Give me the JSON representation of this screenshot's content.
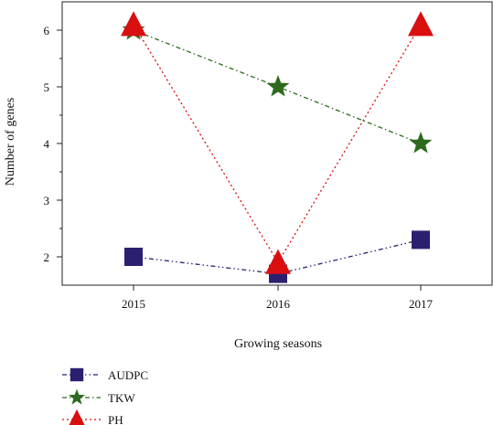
{
  "chart_data": {
    "type": "line",
    "xlabel": "Growing seasons",
    "ylabel": "Number of genes",
    "categories": [
      "2015",
      "2016",
      "2017"
    ],
    "y_ticks": [
      "2",
      "3",
      "4",
      "5",
      "6"
    ],
    "ylim": [
      1.5,
      6.5
    ],
    "grid": false,
    "legend_position": "bottom-left",
    "series": [
      {
        "name": "AUDPC",
        "values": [
          2,
          1.7,
          2.3
        ],
        "color": "#2b2070",
        "marker": "square",
        "line_style": "dash-dot-dot"
      },
      {
        "name": "TKW",
        "values": [
          6,
          5,
          4
        ],
        "color": "#2d6a1e",
        "marker": "star",
        "line_style": "dash-dot"
      },
      {
        "name": "PH",
        "values": [
          6.1,
          1.9,
          6.1
        ],
        "color": "#d90f0f",
        "marker": "triangle",
        "line_style": "dotted"
      }
    ]
  }
}
